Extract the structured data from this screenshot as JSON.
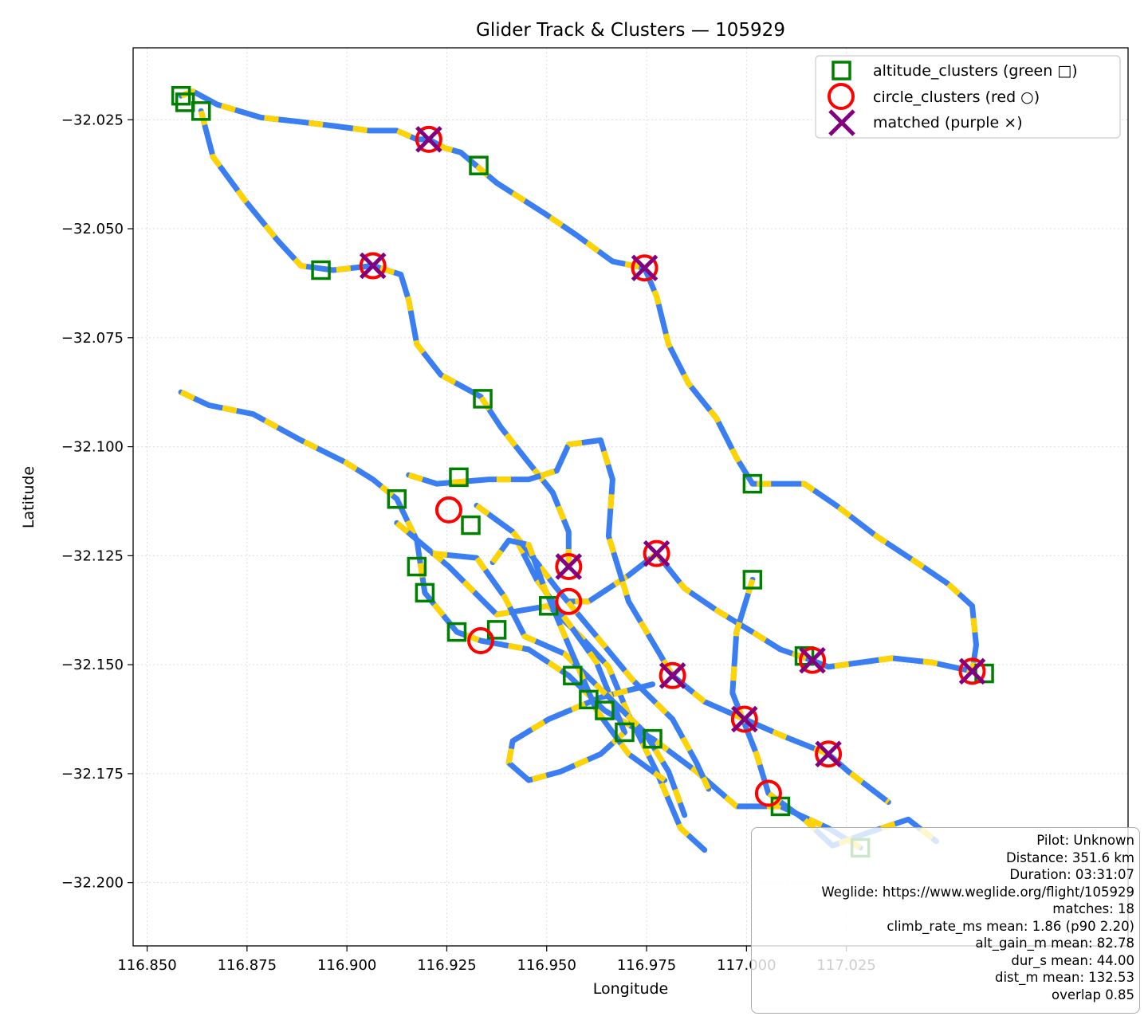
{
  "chart_data": {
    "type": "scatter",
    "title": "Glider Track & Clusters — 105929",
    "xlabel": "Longitude",
    "ylabel": "Latitude",
    "xlim": [
      116.8465,
      117.0955
    ],
    "ylim": [
      -32.2145,
      -32.0085
    ],
    "xticks": [
      {
        "value": 116.85,
        "label": "116.850"
      },
      {
        "value": 116.875,
        "label": "116.875"
      },
      {
        "value": 116.9,
        "label": "116.900"
      },
      {
        "value": 116.925,
        "label": "116.925"
      },
      {
        "value": 116.95,
        "label": "116.950"
      },
      {
        "value": 116.975,
        "label": "116.975"
      },
      {
        "value": 117.0,
        "label": "117.000"
      },
      {
        "value": 117.025,
        "label": "117.025"
      }
    ],
    "yticks": [
      {
        "value": -32.025,
        "label": "−32.025"
      },
      {
        "value": -32.05,
        "label": "−32.050"
      },
      {
        "value": -32.075,
        "label": "−32.075"
      },
      {
        "value": -32.1,
        "label": "−32.100"
      },
      {
        "value": -32.125,
        "label": "−32.125"
      },
      {
        "value": -32.15,
        "label": "−32.150"
      },
      {
        "value": -32.175,
        "label": "−32.175"
      },
      {
        "value": -32.2,
        "label": "−32.200"
      }
    ],
    "grid": true,
    "legend_position": "upper right",
    "colors": {
      "track": "#3a7ef2",
      "track_alt": "#ffd400",
      "altitude": "#008000",
      "circle": "#ff0000",
      "matched": "#800080"
    },
    "series": [
      {
        "name": "altitude_clusters (green □)",
        "marker": "square",
        "color": "#008000",
        "points": [
          [
            116.8585,
            -32.0195
          ],
          [
            116.8595,
            -32.021
          ],
          [
            116.8635,
            -32.023
          ],
          [
            116.8935,
            -32.0595
          ],
          [
            116.933,
            -32.0355
          ],
          [
            116.934,
            -32.089
          ],
          [
            116.9125,
            -32.112
          ],
          [
            116.928,
            -32.107
          ],
          [
            116.931,
            -32.118
          ],
          [
            116.9175,
            -32.1275
          ],
          [
            116.9195,
            -32.1335
          ],
          [
            116.9275,
            -32.1425
          ],
          [
            116.9375,
            -32.142
          ],
          [
            116.9505,
            -32.1365
          ],
          [
            116.9565,
            -32.1525
          ],
          [
            116.9605,
            -32.158
          ],
          [
            116.9645,
            -32.1605
          ],
          [
            116.9695,
            -32.1655
          ],
          [
            116.9765,
            -32.167
          ],
          [
            117.0015,
            -32.1085
          ],
          [
            117.0015,
            -32.1305
          ],
          [
            117.0145,
            -32.148
          ],
          [
            117.0085,
            -32.1825
          ],
          [
            117.0285,
            -32.192
          ],
          [
            117.0595,
            -32.152
          ]
        ]
      },
      {
        "name": "circle_clusters (red ○)",
        "marker": "circle",
        "color": "#ff0000",
        "points": [
          [
            116.9205,
            -32.0295
          ],
          [
            116.9065,
            -32.0585
          ],
          [
            116.9745,
            -32.059
          ],
          [
            116.9255,
            -32.1145
          ],
          [
            116.9555,
            -32.1275
          ],
          [
            116.9555,
            -32.1355
          ],
          [
            116.9335,
            -32.1445
          ],
          [
            116.9775,
            -32.1245
          ],
          [
            116.9815,
            -32.1525
          ],
          [
            116.9995,
            -32.1625
          ],
          [
            117.0165,
            -32.149
          ],
          [
            117.0205,
            -32.1705
          ],
          [
            117.0055,
            -32.1795
          ],
          [
            117.0565,
            -32.1515
          ]
        ]
      },
      {
        "name": "matched (purple ×)",
        "marker": "x",
        "color": "#800080",
        "points": [
          [
            116.9205,
            -32.0295
          ],
          [
            116.9065,
            -32.0585
          ],
          [
            116.9745,
            -32.059
          ],
          [
            116.9555,
            -32.1275
          ],
          [
            116.9775,
            -32.1245
          ],
          [
            116.9815,
            -32.1525
          ],
          [
            116.9995,
            -32.1625
          ],
          [
            117.0165,
            -32.149
          ],
          [
            117.0205,
            -32.1705
          ],
          [
            117.0565,
            -32.1515
          ]
        ]
      }
    ],
    "track": [
      [
        [
          116.8585,
          -32.0195
        ],
        [
          116.8615,
          -32.0185
        ],
        [
          116.8675,
          -32.0215
        ],
        [
          116.8785,
          -32.0245
        ],
        [
          116.8885,
          -32.0255
        ],
        [
          116.8975,
          -32.0265
        ],
        [
          116.9055,
          -32.0275
        ],
        [
          116.9125,
          -32.0275
        ],
        [
          116.9175,
          -32.0295
        ],
        [
          116.9205,
          -32.0295
        ],
        [
          116.9245,
          -32.0315
        ],
        [
          116.9285,
          -32.0325
        ],
        [
          116.9375,
          -32.0395
        ],
        [
          116.9495,
          -32.0465
        ],
        [
          116.9575,
          -32.0515
        ],
        [
          116.9665,
          -32.0575
        ],
        [
          116.9745,
          -32.059
        ],
        [
          116.9775,
          -32.0655
        ],
        [
          116.9805,
          -32.0765
        ],
        [
          116.9855,
          -32.0855
        ],
        [
          116.9925,
          -32.0935
        ],
        [
          116.9975,
          -32.1025
        ],
        [
          117.0015,
          -32.1085
        ],
        [
          117.0145,
          -32.1085
        ],
        [
          117.0225,
          -32.1135
        ],
        [
          117.0325,
          -32.1205
        ],
        [
          117.0425,
          -32.1265
        ],
        [
          117.0505,
          -32.1315
        ],
        [
          117.0565,
          -32.1365
        ],
        [
          117.0575,
          -32.1455
        ],
        [
          117.0565,
          -32.1515
        ],
        [
          117.0465,
          -32.1495
        ],
        [
          117.0365,
          -32.1485
        ],
        [
          117.0285,
          -32.1495
        ],
        [
          117.0205,
          -32.1505
        ],
        [
          117.0165,
          -32.149
        ],
        [
          117.0085,
          -32.1465
        ],
        [
          117.0015,
          -32.1425
        ],
        [
          116.9925,
          -32.1375
        ],
        [
          116.9845,
          -32.1325
        ],
        [
          116.9775,
          -32.1245
        ],
        [
          116.9705,
          -32.1295
        ],
        [
          116.9605,
          -32.1355
        ],
        [
          116.9555,
          -32.1355
        ]
      ],
      [
        [
          116.8635,
          -32.023
        ],
        [
          116.8665,
          -32.0335
        ],
        [
          116.8745,
          -32.0435
        ],
        [
          116.8825,
          -32.0525
        ],
        [
          116.8885,
          -32.0585
        ],
        [
          116.8965,
          -32.0595
        ],
        [
          116.9065,
          -32.0585
        ],
        [
          116.9135,
          -32.0605
        ],
        [
          116.9155,
          -32.0665
        ],
        [
          116.9175,
          -32.0765
        ],
        [
          116.9235,
          -32.0835
        ],
        [
          116.9335,
          -32.0885
        ],
        [
          116.9385,
          -32.0955
        ],
        [
          116.9445,
          -32.1025
        ],
        [
          116.9515,
          -32.1105
        ],
        [
          116.9555,
          -32.1195
        ],
        [
          116.9555,
          -32.1275
        ]
      ],
      [
        [
          116.8585,
          -32.0875
        ],
        [
          116.8655,
          -32.0905
        ],
        [
          116.8765,
          -32.0925
        ],
        [
          116.8885,
          -32.0985
        ],
        [
          116.8995,
          -32.1035
        ],
        [
          116.9065,
          -32.1075
        ],
        [
          116.9125,
          -32.112
        ],
        [
          116.9175,
          -32.1215
        ],
        [
          116.9195,
          -32.1335
        ],
        [
          116.9275,
          -32.1425
        ],
        [
          116.9335,
          -32.1445
        ],
        [
          116.9455,
          -32.1465
        ],
        [
          116.9555,
          -32.1525
        ],
        [
          116.9645,
          -32.1605
        ],
        [
          116.9765,
          -32.167
        ],
        [
          116.9875,
          -32.1745
        ],
        [
          116.9975,
          -32.1825
        ],
        [
          117.0085,
          -32.1825
        ],
        [
          117.0205,
          -32.1875
        ],
        [
          117.0285,
          -32.192
        ]
      ],
      [
        [
          116.9155,
          -32.1065
        ],
        [
          116.9225,
          -32.1085
        ],
        [
          116.9355,
          -32.1075
        ],
        [
          116.9455,
          -32.1075
        ],
        [
          116.9525,
          -32.1055
        ],
        [
          116.9555,
          -32.0995
        ],
        [
          116.9635,
          -32.0985
        ],
        [
          116.9665,
          -32.1075
        ],
        [
          116.9655,
          -32.1205
        ],
        [
          116.9705,
          -32.1355
        ],
        [
          116.9815,
          -32.1525
        ],
        [
          116.9895,
          -32.1585
        ],
        [
          116.9995,
          -32.1625
        ],
        [
          117.0095,
          -32.1665
        ],
        [
          117.0205,
          -32.1705
        ],
        [
          117.0255,
          -32.1745
        ],
        [
          117.0355,
          -32.1815
        ]
      ],
      [
        [
          116.9125,
          -32.1175
        ],
        [
          116.9255,
          -32.1275
        ],
        [
          116.9375,
          -32.1385
        ],
        [
          116.9505,
          -32.1365
        ],
        [
          116.9585,
          -32.1435
        ],
        [
          116.9655,
          -32.1505
        ],
        [
          116.9705,
          -32.1615
        ],
        [
          116.9775,
          -32.1745
        ],
        [
          116.9835,
          -32.1875
        ],
        [
          116.9895,
          -32.1925
        ]
      ],
      [
        [
          116.9425,
          -32.1215
        ],
        [
          116.9475,
          -32.1305
        ],
        [
          116.9555,
          -32.1405
        ],
        [
          116.9625,
          -32.1495
        ],
        [
          116.9695,
          -32.1655
        ],
        [
          116.9635,
          -32.1705
        ],
        [
          116.9535,
          -32.1745
        ],
        [
          116.9455,
          -32.1765
        ],
        [
          116.9405,
          -32.1725
        ],
        [
          116.9415,
          -32.1675
        ],
        [
          116.9505,
          -32.1625
        ],
        [
          116.9635,
          -32.1575
        ],
        [
          116.9765,
          -32.1545
        ]
      ],
      [
        [
          117.0015,
          -32.1305
        ],
        [
          116.9975,
          -32.1425
        ],
        [
          116.9965,
          -32.1565
        ],
        [
          117.0025,
          -32.1705
        ],
        [
          117.0055,
          -32.1795
        ],
        [
          117.0145,
          -32.1855
        ],
        [
          117.0215,
          -32.1915
        ],
        [
          117.0305,
          -32.1885
        ],
        [
          117.0405,
          -32.1855
        ],
        [
          117.0475,
          -32.1905
        ]
      ],
      [
        [
          116.9325,
          -32.1135
        ],
        [
          116.9415,
          -32.1195
        ],
        [
          116.9475,
          -32.1265
        ],
        [
          116.9525,
          -32.1325
        ],
        [
          116.9625,
          -32.1435
        ],
        [
          116.9715,
          -32.1535
        ],
        [
          116.9815,
          -32.1625
        ],
        [
          116.9875,
          -32.1725
        ],
        [
          116.9905,
          -32.1785
        ]
      ],
      [
        [
          116.9215,
          -32.1245
        ],
        [
          116.9325,
          -32.1255
        ],
        [
          116.9395,
          -32.1345
        ],
        [
          116.9445,
          -32.1435
        ],
        [
          116.9545,
          -32.1475
        ],
        [
          116.9645,
          -32.1565
        ],
        [
          116.9745,
          -32.1655
        ],
        [
          116.9805,
          -32.1745
        ],
        [
          116.9845,
          -32.1845
        ]
      ],
      [
        [
          116.9365,
          -32.1265
        ],
        [
          116.9405,
          -32.1215
        ],
        [
          116.9455,
          -32.1225
        ],
        [
          116.9495,
          -32.1325
        ],
        [
          116.9555,
          -32.1455
        ],
        [
          116.9625,
          -32.1605
        ],
        [
          116.9705,
          -32.1705
        ],
        [
          116.9795,
          -32.1765
        ]
      ]
    ]
  },
  "legend": [
    {
      "label": "altitude_clusters (green □)",
      "marker": "square-icon"
    },
    {
      "label": "circle_clusters (red ○)",
      "marker": "circle-icon"
    },
    {
      "label": "matched (purple ×)",
      "marker": "x-icon"
    }
  ],
  "infobox": [
    "Pilot: Unknown",
    "Distance: 351.6 km",
    "Duration: 03:31:07",
    "Weglide: https://www.weglide.org/flight/105929",
    "matches: 18",
    "climb_rate_ms mean: 1.86 (p90 2.20)",
    "alt_gain_m mean: 82.78",
    "dur_s mean: 44.00",
    "dist_m mean: 132.53",
    "overlap 0.85"
  ]
}
